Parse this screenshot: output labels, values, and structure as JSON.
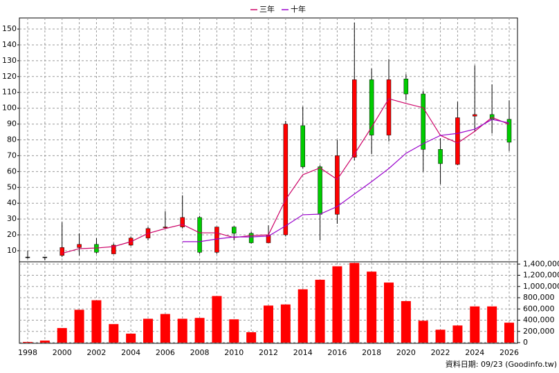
{
  "chart_data": {
    "type": "candlestick",
    "categories": [
      "1998",
      null,
      "2000",
      null,
      "2002",
      null,
      "2004",
      null,
      "2006",
      null,
      "2008",
      null,
      "2010",
      null,
      "2012",
      null,
      "2014",
      null,
      "2016",
      null,
      "2018",
      null,
      "2020",
      null,
      "2022",
      null,
      "2024",
      null,
      "2026"
    ],
    "ohlc": {
      "open": [
        6,
        6,
        7,
        12,
        14,
        8,
        13.5,
        18,
        24.5,
        25,
        31,
        9,
        25,
        21,
        15,
        20,
        89,
        63,
        33,
        69,
        118,
        83,
        118.5,
        109,
        74,
        64.5,
        95,
        96,
        93
      ],
      "high": [
        10,
        6,
        28,
        21,
        18,
        14.5,
        19,
        25,
        35,
        45,
        32,
        25,
        25.5,
        22,
        26,
        92,
        101,
        64,
        80,
        154,
        125,
        131,
        121.5,
        111,
        81,
        104,
        127,
        115,
        105
      ],
      "low": [
        5,
        4,
        6,
        7,
        8,
        8,
        13,
        16.5,
        24,
        24,
        8,
        8,
        16.5,
        14.5,
        15,
        19,
        62,
        16.5,
        27,
        67,
        71,
        79,
        105,
        60,
        52,
        64,
        85,
        84,
        73
      ],
      "close": [
        6,
        6,
        12,
        14,
        9,
        13.5,
        18,
        24,
        25,
        31,
        9,
        25,
        21,
        15,
        20,
        90,
        63,
        33,
        70,
        118,
        83,
        118,
        109,
        74,
        65,
        94,
        96,
        93,
        78.5
      ],
      "up_color": "#ff0000",
      "down_color": "#00cc00",
      "flat_color": "#000000"
    },
    "series": [
      {
        "name": "三年",
        "color": "#cc0066",
        "values": [
          null,
          null,
          8.3,
          11.3,
          11.7,
          12.6,
          15.7,
          20.9,
          24,
          26.6,
          21.3,
          21.3,
          18.3,
          19.6,
          20,
          42.3,
          58,
          62.3,
          55,
          71,
          88,
          106,
          103,
          100.3,
          82.8,
          78,
          85.4,
          94.2,
          89.8
        ]
      },
      {
        "name": "十年",
        "color": "#9900cc",
        "values": [
          null,
          null,
          null,
          null,
          null,
          null,
          null,
          null,
          null,
          15.7,
          15.7,
          17.4,
          18.7,
          18.7,
          19.2,
          25.7,
          32.7,
          33.1,
          37.9,
          45.8,
          53.6,
          61.9,
          71.5,
          77.6,
          82.8,
          84.1,
          86.8,
          92.9,
          90.7
        ]
      }
    ],
    "volume": {
      "color": "#ff0000",
      "axis": "y2",
      "values": [
        12000,
        36000,
        260000,
        585000,
        755000,
        330000,
        160000,
        425000,
        510000,
        425000,
        440000,
        830000,
        415000,
        185000,
        660000,
        680000,
        950000,
        1120000,
        1360000,
        1420000,
        1265000,
        1070000,
        740000,
        390000,
        230000,
        305000,
        645000,
        645000,
        355000
      ]
    },
    "ylim": [
      3,
      157
    ],
    "yticks": [
      10,
      20,
      30,
      40,
      50,
      60,
      70,
      80,
      90,
      100,
      110,
      120,
      130,
      140,
      150
    ],
    "y2lim": [
      0,
      1440000
    ],
    "y2ticks": [
      0,
      {
        "value": 200000,
        "label": "200,000"
      },
      {
        "value": 400000,
        "label": "400,000"
      },
      {
        "value": 600000,
        "label": "600,000"
      },
      {
        "value": 800000,
        "label": "800,000"
      },
      {
        "value": 1000000,
        "label": "1,000,000"
      },
      {
        "value": 1200000,
        "label": "1,200,000"
      },
      {
        "value": 1400000,
        "label": "1,400,000"
      }
    ],
    "grid": true,
    "source": "資料日期: 09/23 (Goodinfo.tw)"
  }
}
